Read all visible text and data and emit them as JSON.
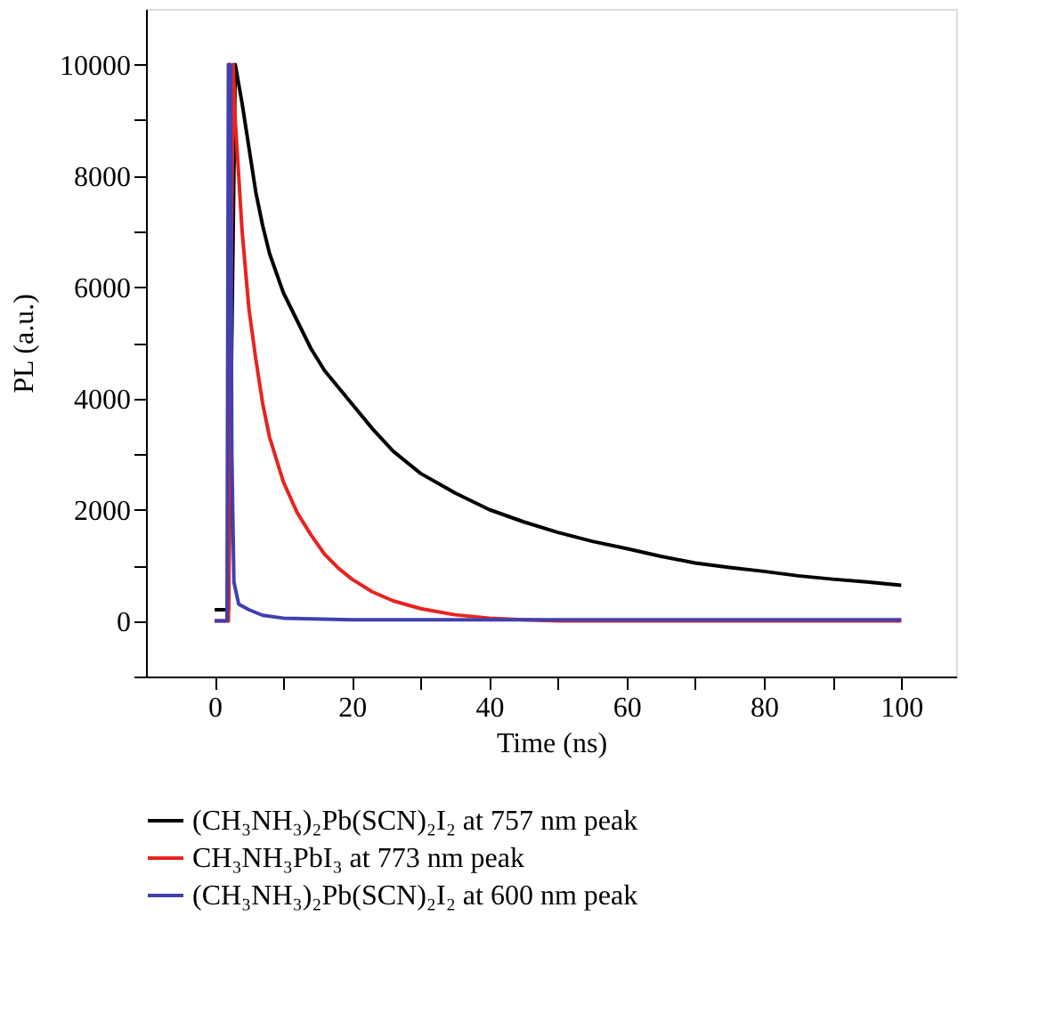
{
  "chart_data": {
    "type": "line",
    "xlabel": "Time (ns)",
    "ylabel": "PL (a.u.)",
    "xlim": [
      -10,
      108
    ],
    "ylim": [
      -1000,
      11000
    ],
    "xticks": [
      0,
      {
        "value": 10,
        "label": null
      },
      20,
      {
        "value": 30,
        "label": null
      },
      40,
      {
        "value": 50,
        "label": null
      },
      60,
      {
        "value": 70,
        "label": null
      },
      80,
      {
        "value": 90,
        "label": null
      },
      100
    ],
    "yticks": [
      {
        "value": -1000,
        "label": null
      },
      0,
      {
        "value": 1000,
        "label": null
      },
      2000,
      {
        "value": 3000,
        "label": null
      },
      4000,
      {
        "value": 5000,
        "label": null
      },
      6000,
      {
        "value": 7000,
        "label": null
      },
      8000,
      {
        "value": 9000,
        "label": null
      },
      10000
    ],
    "grid": false,
    "legend": "bottom",
    "marker": "none",
    "line_style": "solid",
    "series": [
      {
        "name": "(CH₃NH₃)₂Pb(SCN)₂I₂ at 757 nm peak",
        "color": "#000000",
        "x": [
          0,
          2,
          3,
          4,
          5,
          6,
          7,
          8,
          10,
          12,
          14,
          16,
          18,
          20,
          23,
          26,
          30,
          35,
          40,
          45,
          50,
          55,
          60,
          65,
          70,
          75,
          80,
          85,
          90,
          95,
          100
        ],
        "values": [
          200,
          200,
          10000,
          9300,
          8500,
          7700,
          7100,
          6600,
          5900,
          5400,
          4900,
          4500,
          4200,
          3900,
          3450,
          3050,
          2650,
          2300,
          2000,
          1780,
          1590,
          1430,
          1300,
          1160,
          1040,
          960,
          890,
          810,
          750,
          700,
          640
        ]
      },
      {
        "name": "CH₃NH₃PbI₃ at 773 nm peak",
        "color": "#e8231f",
        "x": [
          0,
          2,
          2.3,
          2.7,
          3,
          4,
          5,
          6,
          7,
          8,
          10,
          12,
          14,
          16,
          18,
          20,
          23,
          26,
          30,
          35,
          40,
          45,
          50,
          60,
          80,
          100
        ],
        "values": [
          0,
          0,
          5000,
          10000,
          9000,
          7000,
          5600,
          4700,
          3900,
          3300,
          2500,
          1950,
          1550,
          1200,
          950,
          750,
          520,
          360,
          220,
          110,
          50,
          20,
          0,
          0,
          0,
          0
        ]
      },
      {
        "name": "(CH₃NH₃)₂Pb(SCN)₂I₂ at 600 nm peak",
        "color": "#4040b0",
        "x": [
          0,
          1.8,
          2,
          2.3,
          2.5,
          2.8,
          3.5,
          5,
          7,
          10,
          20,
          40,
          60,
          80,
          100
        ],
        "values": [
          0,
          0,
          10000,
          10000,
          3000,
          700,
          300,
          200,
          100,
          50,
          20,
          20,
          20,
          20,
          20
        ]
      }
    ]
  }
}
